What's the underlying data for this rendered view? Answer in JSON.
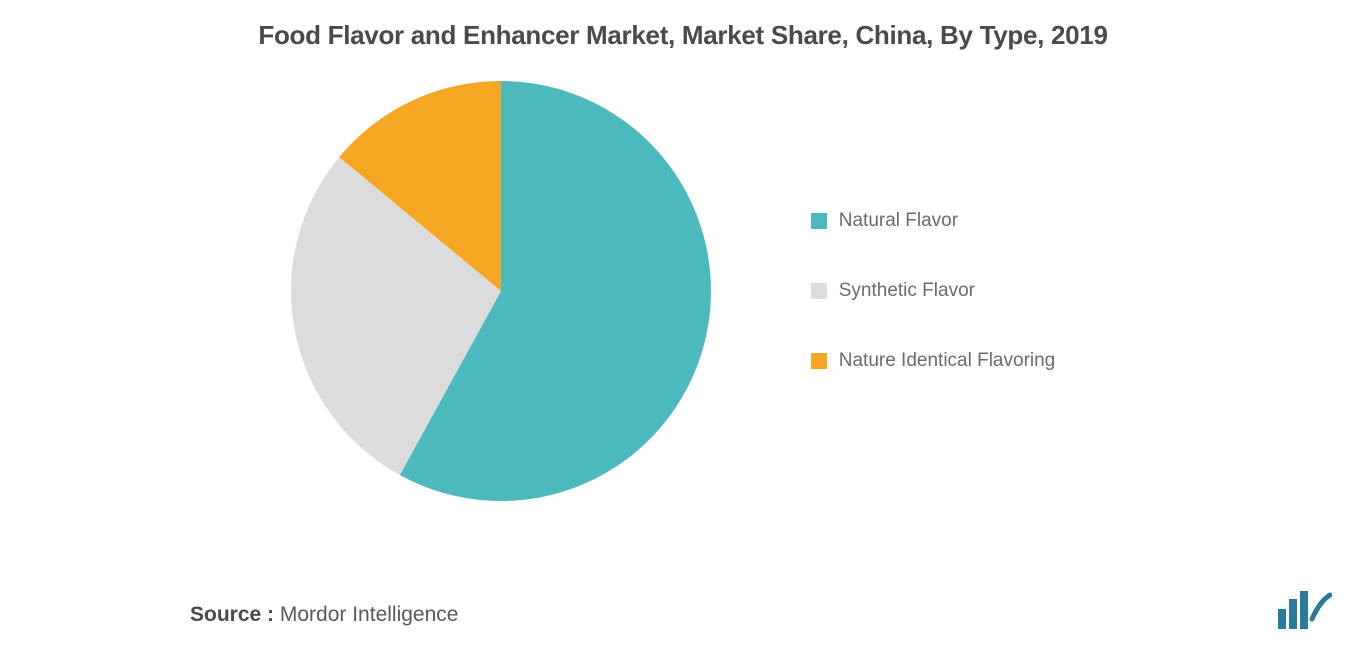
{
  "title": "Food Flavor and Enhancer Market, Market Share, China, By Type, 2019",
  "chart": {
    "type": "pie",
    "radius": 210,
    "background_color": "#ffffff",
    "slices": [
      {
        "label": "Natural Flavor",
        "value": 58,
        "color": "#4cb9bd"
      },
      {
        "label": "Synthetic Flavor",
        "value": 28,
        "color": "#dcdcdc"
      },
      {
        "label": "Nature Identical Flavoring",
        "value": 14,
        "color": "#f5a623"
      }
    ]
  },
  "legend": {
    "items": [
      {
        "label": "Natural Flavor",
        "color": "#4cb9bd"
      },
      {
        "label": "Synthetic Flavor",
        "color": "#dcdcdc"
      },
      {
        "label": "Nature Identical Flavoring",
        "color": "#f5a623"
      }
    ],
    "fontsize": 19,
    "text_color": "#6b6b6b",
    "swatch_size": 16
  },
  "source": {
    "label": "Source :",
    "value": "Mordor Intelligence",
    "fontsize": 21,
    "label_color": "#4a4a4a",
    "value_color": "#5a5a5a"
  },
  "logo": {
    "bars_color": "#2a7b9b",
    "accent_color": "#2a7b9b"
  }
}
